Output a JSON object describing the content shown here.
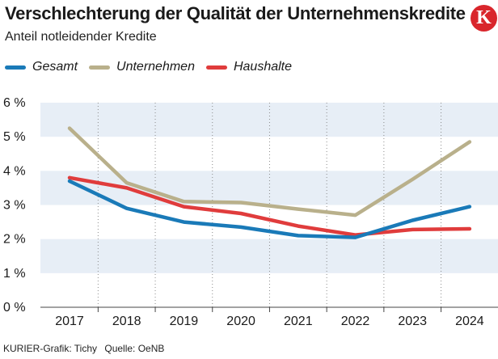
{
  "header": {
    "title": "Verschlechterung der Qualität der Unternehmenskredite",
    "subtitle": "Anteil notleidender Kredite",
    "logo_letter": "K",
    "logo_color": "#d9262c"
  },
  "footer": {
    "credit": "KURIER-Grafik: Tichy",
    "source": "Quelle: OeNB"
  },
  "chart_data": {
    "type": "line",
    "title": "Verschlechterung der Qualität der Unternehmenskredite",
    "subtitle": "Anteil notleidender Kredite",
    "xlabel": "",
    "ylabel": "",
    "categories": [
      "2017",
      "2018",
      "2019",
      "2020",
      "2021",
      "2022",
      "2023",
      "2024"
    ],
    "ylim": [
      0,
      6
    ],
    "yticks": [
      "0 %",
      "1 %",
      "2 %",
      "3 %",
      "4 %",
      "5 %",
      "6 %"
    ],
    "grid": "alternating horizontal bands, dotted vertical lines",
    "legend": "top-left",
    "series": [
      {
        "name": "Gesamt",
        "color": "#1a7ab8",
        "values": [
          3.7,
          2.9,
          2.5,
          2.35,
          2.1,
          2.05,
          2.55,
          2.95
        ]
      },
      {
        "name": "Unternehmen",
        "color": "#b9b08b",
        "values": [
          5.25,
          3.65,
          3.1,
          3.07,
          2.88,
          2.7,
          3.75,
          4.85
        ]
      },
      {
        "name": "Haushalte",
        "color": "#e03c3c",
        "values": [
          3.8,
          3.5,
          2.95,
          2.75,
          2.38,
          2.12,
          2.28,
          2.3
        ]
      }
    ]
  }
}
